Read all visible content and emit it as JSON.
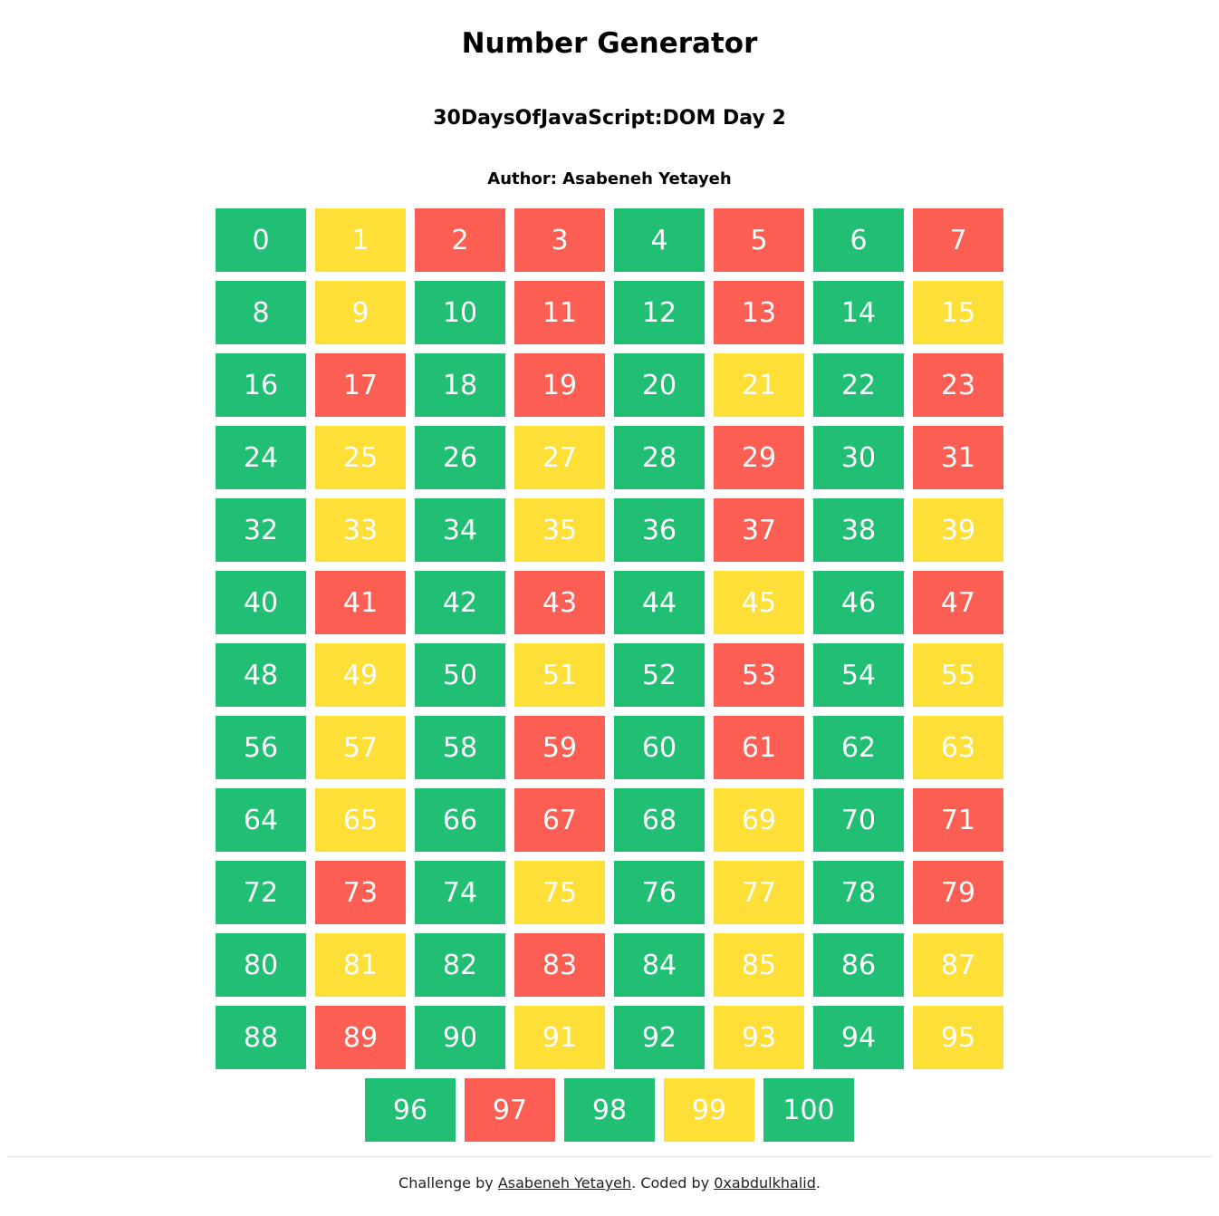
{
  "header": {
    "title": "Number Generator",
    "subtitle": "30DaysOfJavaScript:DOM Day 2",
    "author": "Author: Asabeneh Yetayeh"
  },
  "colors": {
    "even": "#21bf73",
    "odd": "#fddf38",
    "prime": "#fd5e53",
    "text": "#ffffff"
  },
  "numbers": [
    {
      "n": "0",
      "k": "even"
    },
    {
      "n": "1",
      "k": "odd"
    },
    {
      "n": "2",
      "k": "prime"
    },
    {
      "n": "3",
      "k": "prime"
    },
    {
      "n": "4",
      "k": "even"
    },
    {
      "n": "5",
      "k": "prime"
    },
    {
      "n": "6",
      "k": "even"
    },
    {
      "n": "7",
      "k": "prime"
    },
    {
      "n": "8",
      "k": "even"
    },
    {
      "n": "9",
      "k": "odd"
    },
    {
      "n": "10",
      "k": "even"
    },
    {
      "n": "11",
      "k": "prime"
    },
    {
      "n": "12",
      "k": "even"
    },
    {
      "n": "13",
      "k": "prime"
    },
    {
      "n": "14",
      "k": "even"
    },
    {
      "n": "15",
      "k": "odd"
    },
    {
      "n": "16",
      "k": "even"
    },
    {
      "n": "17",
      "k": "prime"
    },
    {
      "n": "18",
      "k": "even"
    },
    {
      "n": "19",
      "k": "prime"
    },
    {
      "n": "20",
      "k": "even"
    },
    {
      "n": "21",
      "k": "odd"
    },
    {
      "n": "22",
      "k": "even"
    },
    {
      "n": "23",
      "k": "prime"
    },
    {
      "n": "24",
      "k": "even"
    },
    {
      "n": "25",
      "k": "odd"
    },
    {
      "n": "26",
      "k": "even"
    },
    {
      "n": "27",
      "k": "odd"
    },
    {
      "n": "28",
      "k": "even"
    },
    {
      "n": "29",
      "k": "prime"
    },
    {
      "n": "30",
      "k": "even"
    },
    {
      "n": "31",
      "k": "prime"
    },
    {
      "n": "32",
      "k": "even"
    },
    {
      "n": "33",
      "k": "odd"
    },
    {
      "n": "34",
      "k": "even"
    },
    {
      "n": "35",
      "k": "odd"
    },
    {
      "n": "36",
      "k": "even"
    },
    {
      "n": "37",
      "k": "prime"
    },
    {
      "n": "38",
      "k": "even"
    },
    {
      "n": "39",
      "k": "odd"
    },
    {
      "n": "40",
      "k": "even"
    },
    {
      "n": "41",
      "k": "prime"
    },
    {
      "n": "42",
      "k": "even"
    },
    {
      "n": "43",
      "k": "prime"
    },
    {
      "n": "44",
      "k": "even"
    },
    {
      "n": "45",
      "k": "odd"
    },
    {
      "n": "46",
      "k": "even"
    },
    {
      "n": "47",
      "k": "prime"
    },
    {
      "n": "48",
      "k": "even"
    },
    {
      "n": "49",
      "k": "odd"
    },
    {
      "n": "50",
      "k": "even"
    },
    {
      "n": "51",
      "k": "odd"
    },
    {
      "n": "52",
      "k": "even"
    },
    {
      "n": "53",
      "k": "prime"
    },
    {
      "n": "54",
      "k": "even"
    },
    {
      "n": "55",
      "k": "odd"
    },
    {
      "n": "56",
      "k": "even"
    },
    {
      "n": "57",
      "k": "odd"
    },
    {
      "n": "58",
      "k": "even"
    },
    {
      "n": "59",
      "k": "prime"
    },
    {
      "n": "60",
      "k": "even"
    },
    {
      "n": "61",
      "k": "prime"
    },
    {
      "n": "62",
      "k": "even"
    },
    {
      "n": "63",
      "k": "odd"
    },
    {
      "n": "64",
      "k": "even"
    },
    {
      "n": "65",
      "k": "odd"
    },
    {
      "n": "66",
      "k": "even"
    },
    {
      "n": "67",
      "k": "prime"
    },
    {
      "n": "68",
      "k": "even"
    },
    {
      "n": "69",
      "k": "odd"
    },
    {
      "n": "70",
      "k": "even"
    },
    {
      "n": "71",
      "k": "prime"
    },
    {
      "n": "72",
      "k": "even"
    },
    {
      "n": "73",
      "k": "prime"
    },
    {
      "n": "74",
      "k": "even"
    },
    {
      "n": "75",
      "k": "odd"
    },
    {
      "n": "76",
      "k": "even"
    },
    {
      "n": "77",
      "k": "odd"
    },
    {
      "n": "78",
      "k": "even"
    },
    {
      "n": "79",
      "k": "prime"
    },
    {
      "n": "80",
      "k": "even"
    },
    {
      "n": "81",
      "k": "odd"
    },
    {
      "n": "82",
      "k": "even"
    },
    {
      "n": "83",
      "k": "prime"
    },
    {
      "n": "84",
      "k": "even"
    },
    {
      "n": "85",
      "k": "odd"
    },
    {
      "n": "86",
      "k": "even"
    },
    {
      "n": "87",
      "k": "odd"
    },
    {
      "n": "88",
      "k": "even"
    },
    {
      "n": "89",
      "k": "prime"
    },
    {
      "n": "90",
      "k": "even"
    },
    {
      "n": "91",
      "k": "odd"
    },
    {
      "n": "92",
      "k": "even"
    },
    {
      "n": "93",
      "k": "odd"
    },
    {
      "n": "94",
      "k": "even"
    },
    {
      "n": "95",
      "k": "odd"
    },
    {
      "n": "96",
      "k": "even"
    },
    {
      "n": "97",
      "k": "prime"
    },
    {
      "n": "98",
      "k": "even"
    },
    {
      "n": "99",
      "k": "odd"
    },
    {
      "n": "100",
      "k": "even"
    }
  ],
  "footer": {
    "prefix": "Challenge by ",
    "challenge_author": "Asabeneh Yetayeh",
    "middle": ". Coded by ",
    "coder": "0xabdulkhalid",
    "suffix": "."
  }
}
